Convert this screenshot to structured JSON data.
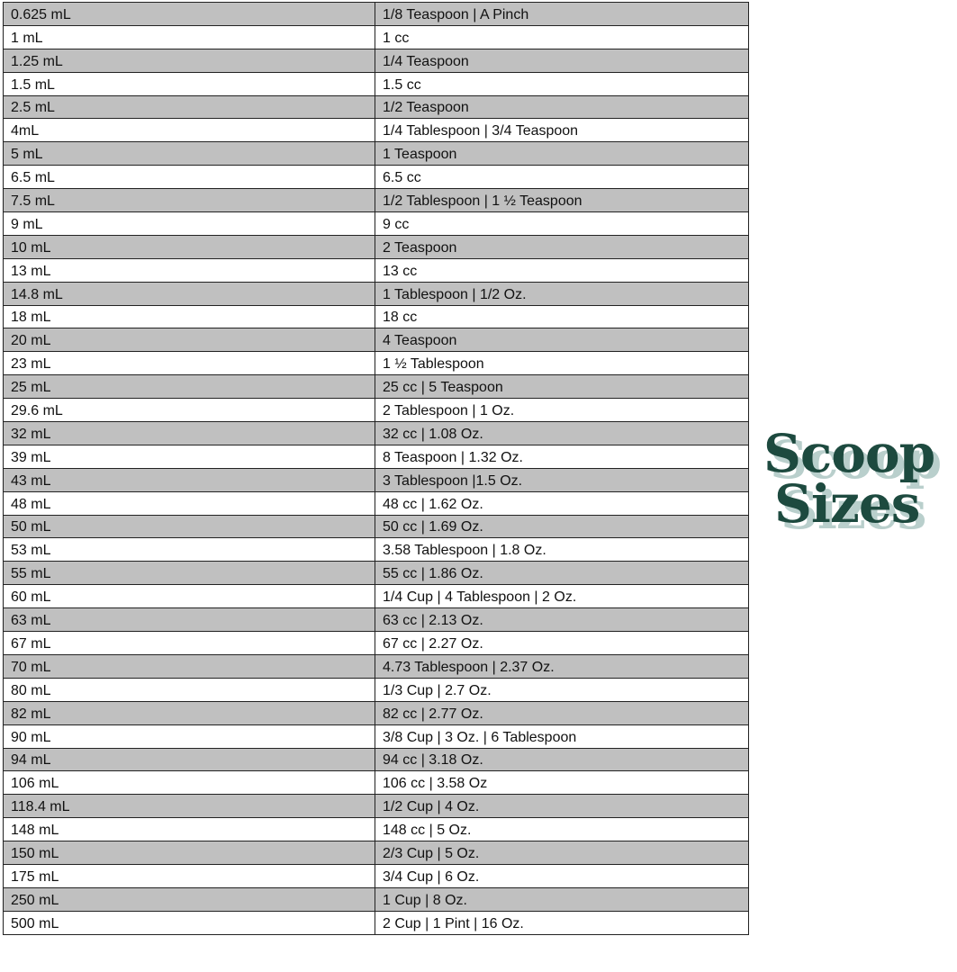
{
  "logo": {
    "line1": "Scoop",
    "line2": "Sizes",
    "color": "#1d4a3f",
    "shadow_color": "#b9cfcc"
  },
  "rows": [
    [
      "0.625 mL",
      "1/8 Teaspoon | A Pinch"
    ],
    [
      "1 mL",
      "1 cc"
    ],
    [
      "1.25 mL",
      "1/4 Teaspoon"
    ],
    [
      "1.5 mL",
      "1.5 cc"
    ],
    [
      "2.5 mL",
      "1/2 Teaspoon"
    ],
    [
      "4mL",
      "1/4 Tablespoon | 3/4 Teaspoon"
    ],
    [
      "5 mL",
      "1 Teaspoon"
    ],
    [
      "6.5 mL",
      "6.5 cc"
    ],
    [
      "7.5 mL",
      "1/2 Tablespoon | 1 ½ Teaspoon"
    ],
    [
      "9 mL",
      "9 cc"
    ],
    [
      "10 mL",
      "2 Teaspoon"
    ],
    [
      "13 mL",
      "13 cc"
    ],
    [
      "14.8 mL",
      "1 Tablespoon | 1/2 Oz."
    ],
    [
      "18 mL",
      "18 cc"
    ],
    [
      "20 mL",
      "4 Teaspoon"
    ],
    [
      "23 mL",
      "1 ½ Tablespoon"
    ],
    [
      "25 mL",
      "25 cc | 5 Teaspoon"
    ],
    [
      "29.6 mL",
      "2 Tablespoon | 1 Oz."
    ],
    [
      "32 mL",
      "32 cc | 1.08 Oz."
    ],
    [
      "39 mL",
      "8 Teaspoon | 1.32 Oz."
    ],
    [
      "43 mL",
      "3 Tablespoon |1.5 Oz."
    ],
    [
      "48 mL",
      "48 cc | 1.62 Oz."
    ],
    [
      "50 mL",
      "50 cc | 1.69 Oz."
    ],
    [
      "53 mL",
      "3.58 Tablespoon | 1.8 Oz."
    ],
    [
      "55 mL",
      "55 cc | 1.86 Oz."
    ],
    [
      "60 mL",
      "1/4 Cup | 4 Tablespoon | 2 Oz."
    ],
    [
      "63 mL",
      "63 cc | 2.13 Oz."
    ],
    [
      "67 mL",
      "67 cc | 2.27 Oz."
    ],
    [
      "70 mL",
      "4.73 Tablespoon | 2.37 Oz."
    ],
    [
      "80 mL",
      "1/3 Cup | 2.7 Oz."
    ],
    [
      "82 mL",
      "82 cc | 2.77 Oz."
    ],
    [
      "90 mL",
      "3/8 Cup | 3 Oz. | 6 Tablespoon"
    ],
    [
      "94 mL",
      "94 cc | 3.18 Oz."
    ],
    [
      "106 mL",
      "106 cc | 3.58 Oz"
    ],
    [
      "118.4 mL",
      "1/2 Cup | 4 Oz."
    ],
    [
      "148 mL",
      "148 cc | 5 Oz."
    ],
    [
      "150 mL",
      "2/3 Cup | 5 Oz."
    ],
    [
      "175 mL",
      "3/4 Cup | 6 Oz."
    ],
    [
      "250 mL",
      "1 Cup | 8 Oz."
    ],
    [
      "500 mL",
      "2 Cup | 1 Pint | 16 Oz."
    ]
  ]
}
